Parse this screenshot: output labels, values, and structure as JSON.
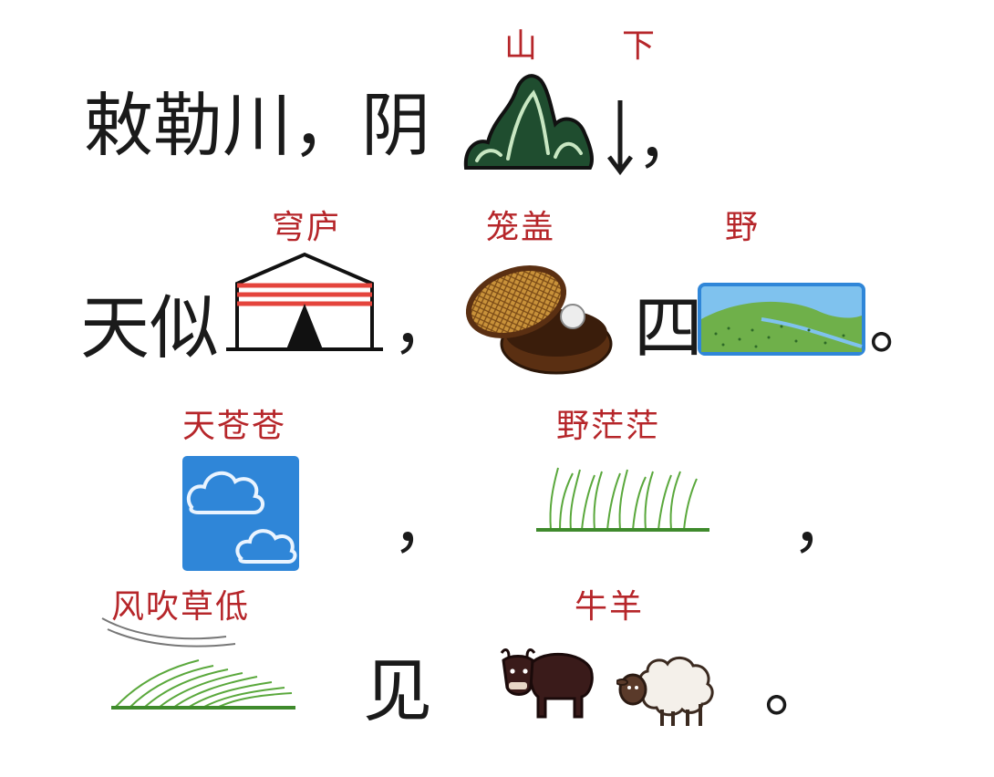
{
  "line1": {
    "text": "敕勒川，阴",
    "annotation_left": "山",
    "annotation_right": "下",
    "comma": "，",
    "icons": [
      "mountain-icon",
      "down-arrow-icon"
    ]
  },
  "line2": {
    "text": "天似",
    "annotation_yurt": "穹庐",
    "comma": "，",
    "annotation_basket": "笼盖",
    "char_four": "四",
    "annotation_field": "野",
    "period": "。",
    "icons": [
      "yurt-icon",
      "bamboo-steamer-icon",
      "green-field-icon"
    ]
  },
  "line3": {
    "annotation_sky": "天苍苍",
    "comma1": "，",
    "annotation_grass": "野茫茫",
    "comma2": "，",
    "icons": [
      "blue-sky-clouds-icon",
      "tall-grass-icon"
    ]
  },
  "line4": {
    "annotation_wind": "风吹草低",
    "char_see": "见",
    "annotation_animals": "牛羊",
    "period": "。",
    "icons": [
      "wind-grass-icon",
      "yak-icon",
      "sheep-icon"
    ]
  },
  "colors": {
    "text": "#1a1a1a",
    "annotation": "#b6262a",
    "mountain": "#1f4d2f",
    "sky": "#2f86d8",
    "grass": "#5aa83c",
    "yurt_stripe": "#e4443c"
  }
}
